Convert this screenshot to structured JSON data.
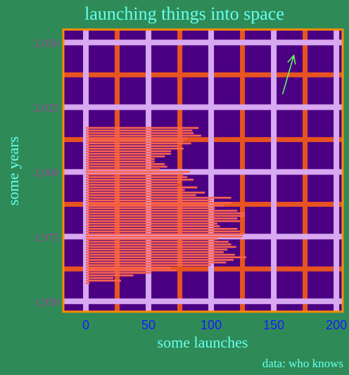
{
  "chart_data": {
    "type": "bar",
    "orientation": "horizontal",
    "title": "launching things into space",
    "xlabel": "some launches",
    "ylabel": "some years",
    "caption": "data: who knows",
    "xlim": [
      -18,
      205
    ],
    "ylim": [
      1946,
      2055
    ],
    "x_ticks": [
      0,
      50,
      100,
      150,
      200
    ],
    "x_tick_labels": [
      "0",
      "50",
      "100",
      "150",
      "200"
    ],
    "y_ticks": [
      1950,
      1975,
      2000,
      2025,
      2050
    ],
    "y_tick_labels": [
      "1,950",
      "1,975",
      "2,000",
      "2,025",
      "2,050"
    ],
    "grid": true,
    "annotation": {
      "type": "arrow",
      "from": [
        157,
        2030
      ],
      "to": [
        166,
        2045
      ]
    },
    "categories": [
      1957,
      1958,
      1959,
      1960,
      1961,
      1962,
      1963,
      1964,
      1965,
      1966,
      1967,
      1968,
      1969,
      1970,
      1971,
      1972,
      1973,
      1974,
      1975,
      1976,
      1977,
      1978,
      1979,
      1980,
      1981,
      1982,
      1983,
      1984,
      1985,
      1986,
      1987,
      1988,
      1989,
      1990,
      1991,
      1992,
      1993,
      1994,
      1995,
      1996,
      1997,
      1998,
      1999,
      2000,
      2001,
      2002,
      2003,
      2004,
      2005,
      2006,
      2007,
      2008,
      2009,
      2010,
      2011,
      2012,
      2013,
      2014,
      2015,
      2016,
      2017
    ],
    "values": [
      3,
      28,
      22,
      38,
      52,
      72,
      68,
      100,
      112,
      118,
      128,
      119,
      110,
      113,
      120,
      116,
      114,
      105,
      125,
      126,
      123,
      121,
      107,
      105,
      123,
      121,
      127,
      127,
      121,
      103,
      110,
      116,
      101,
      116,
      88,
      95,
      79,
      89,
      73,
      76,
      86,
      81,
      78,
      83,
      59,
      65,
      63,
      55,
      55,
      63,
      68,
      68,
      78,
      74,
      84,
      78,
      81,
      92,
      86,
      85,
      90
    ],
    "colors": {
      "background": "#2e8b57",
      "panel": "#4b0082",
      "panel_border": "#ff8c00",
      "major_grid": "#d8a8f0",
      "minor_grid": "#e8541f",
      "bar": "#fa6450",
      "title": "#66ffee",
      "axis_label": "#66ffee",
      "y_tick": "#a0409a",
      "x_tick": "#1a1aff",
      "arrow": "#66ff66"
    }
  }
}
